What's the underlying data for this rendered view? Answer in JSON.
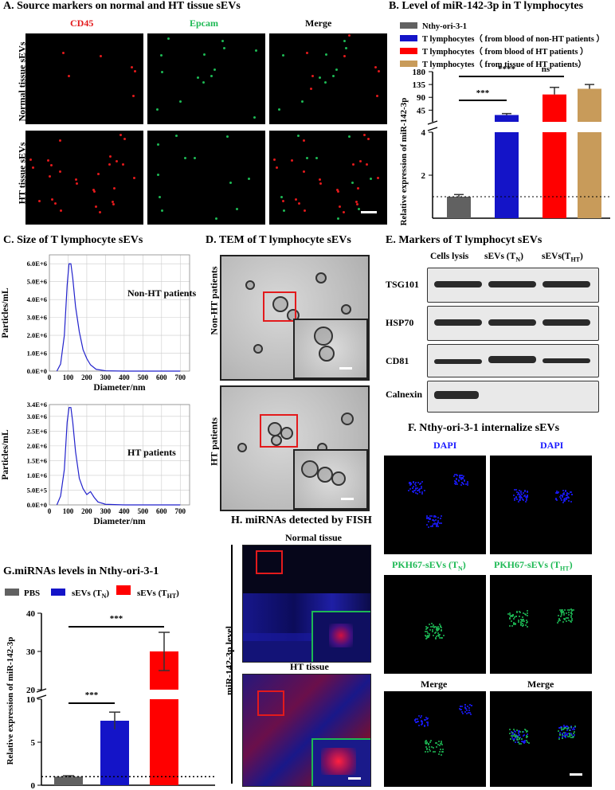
{
  "panelA": {
    "title": "A. Source markers on normal and HT tissue sEVs",
    "columns": [
      "CD45",
      "Epcam",
      "Merge"
    ],
    "rows": [
      "Normal tissue sEVs",
      "HT tissue sEVs"
    ],
    "colors": {
      "cd45": "#e31a1c",
      "epcam": "#1db954"
    }
  },
  "panelB": {
    "title": "B. Level of miR-142-3p in T lymphocytes",
    "legend": [
      {
        "label": "Nthy-ori-3-1",
        "color": "#616161"
      },
      {
        "label": "T lymphocytes（ from blood of non-HT patients ）",
        "color": "#1414c8"
      },
      {
        "label": "T lymphocytes（ from blood of HT patients ）",
        "color": "#ff0000"
      },
      {
        "label": "T lymphocytes（ from tissue of HT patients）",
        "color": "#c89b5a"
      }
    ],
    "sig": [
      "****",
      "***",
      "ns"
    ]
  },
  "panelC": {
    "title": "C. Size of T lymphocyte sEVs",
    "charts": [
      {
        "label": "Non-HT patients",
        "yticks": [
          "0.0E+0",
          "1.0E+6",
          "2.0E+6",
          "3.0E+6",
          "4.0E+6",
          "5.0E+6",
          "6.0E+6"
        ]
      },
      {
        "label": "HT patients",
        "yticks": [
          "0.0E+0",
          "5.0E+5",
          "1.0E+6",
          "1.5E+6",
          "2.0E+6",
          "2.5E+6",
          "3.0E+6",
          "3.4E+6"
        ]
      }
    ],
    "xticks": [
      "0",
      "100",
      "200",
      "300",
      "400",
      "500",
      "600",
      "700"
    ],
    "xlabel": "Diameter/nm",
    "ylabel": "Particles/mL"
  },
  "panelD": {
    "title": "D. TEM of T lymphocyte sEVs",
    "rows": [
      "Non-HT patients",
      "HT patients"
    ]
  },
  "panelE": {
    "title": "E. Markers of T lymphocyt sEVs",
    "lanes": [
      "Cells lysis",
      "sEVs (T",
      "N",
      ")",
      "sEVs(T",
      "HT",
      ")"
    ],
    "proteins": [
      "TSG101",
      "HSP70",
      "CD81",
      "Calnexin"
    ]
  },
  "panelF": {
    "title": "F. Nthy-ori-3-1 internalize sEVs",
    "labels": [
      "DAPI",
      "DAPI",
      "PKH67-sEVs (T",
      "N",
      ")",
      "PKH67-sEVs (T",
      "HT",
      ")",
      "Merge",
      "Merge"
    ],
    "colors": {
      "dapi": "#1a1aff",
      "pkh": "#1db954"
    }
  },
  "panelG": {
    "title": "G.miRNAs levels in Nthy-ori-3-1",
    "legend": [
      {
        "label": "PBS",
        "color": "#616161"
      },
      {
        "label": "sEVs (T",
        "sub": "N",
        "close": ")",
        "color": "#1414c8"
      },
      {
        "label": "sEVs (T",
        "sub": "HT",
        "close": ")",
        "color": "#ff0000"
      }
    ],
    "sig": [
      "***",
      "***"
    ],
    "ylabel": "Relative expression of miR-142-3p"
  },
  "panelH": {
    "title": "H. miRNAs detected by FISH",
    "rows": [
      "Normal tissue",
      "HT tissue"
    ],
    "side_label": "miR-142-3p level"
  },
  "chart_data": [
    {
      "type": "bar",
      "id": "B",
      "categories": [
        "Nthy-ori-3-1",
        "T lymphocytes (blood, non-HT)",
        "T lymphocytes (blood, HT)",
        "T lymphocytes (tissue, HT)"
      ],
      "values": [
        1.0,
        28,
        100,
        120
      ],
      "errors": [
        0.1,
        5,
        25,
        15
      ],
      "ylabel": "Relative expression of miR-142-3p",
      "yticks_lower": [
        2,
        4
      ],
      "yticks_upper": [
        45,
        90,
        135,
        180
      ],
      "axis_break": [
        4,
        5
      ],
      "reference_line": 1
    },
    {
      "type": "line",
      "id": "C-non-HT",
      "x": [
        40,
        60,
        80,
        95,
        105,
        115,
        125,
        140,
        160,
        180,
        200,
        220,
        250,
        300,
        400,
        700
      ],
      "y": [
        0,
        400000.0,
        2000000.0,
        4800000.0,
        6000000.0,
        6000000.0,
        5200000.0,
        3600000.0,
        2200000.0,
        1200000.0,
        700000.0,
        350000.0,
        100000.0,
        20000.0,
        0,
        0
      ],
      "xlabel": "Diameter/nm",
      "ylabel": "Particles/mL",
      "xlim": [
        0,
        750
      ],
      "ylim": [
        0,
        6500000.0
      ]
    },
    {
      "type": "line",
      "id": "C-HT",
      "x": [
        40,
        60,
        80,
        95,
        105,
        115,
        125,
        140,
        160,
        180,
        200,
        220,
        240,
        260,
        300,
        400,
        700
      ],
      "y": [
        0,
        300000.0,
        1200000.0,
        2800000.0,
        3300000.0,
        3300000.0,
        2800000.0,
        1800000.0,
        900000.0,
        550000.0,
        350000.0,
        450000.0,
        250000.0,
        100000.0,
        20000.0,
        0,
        0
      ],
      "xlabel": "Diameter/nm",
      "ylabel": "Particles/mL",
      "xlim": [
        0,
        750
      ],
      "ylim": [
        0,
        3400000.0
      ]
    },
    {
      "type": "bar",
      "id": "G",
      "categories": [
        "PBS",
        "sEVs (TN)",
        "sEVs (THT)"
      ],
      "values": [
        1.0,
        7.5,
        30
      ],
      "errors": [
        0.1,
        1.0,
        5
      ],
      "ylabel": "Relative expression of miR-142-3p",
      "yticks_lower": [
        0,
        5,
        10
      ],
      "yticks_upper": [
        20,
        30,
        40
      ],
      "axis_break": [
        10,
        20
      ],
      "reference_line": 1
    }
  ]
}
